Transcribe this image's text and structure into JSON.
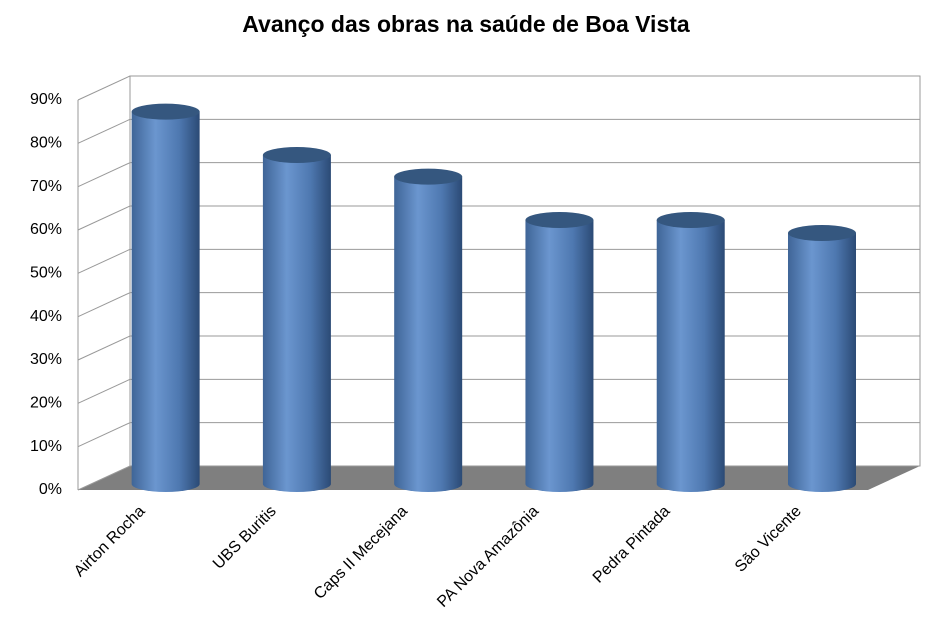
{
  "chart_data": {
    "type": "bar",
    "title": "Avanço das obras na saúde de Boa Vista",
    "categories": [
      "Airton Rocha",
      "UBS Buritis",
      "Caps II Mecejana",
      "PA Nova Amazônia",
      "Pedra Pintada",
      "São Vicente"
    ],
    "values": [
      85,
      75,
      70,
      60,
      60,
      57
    ],
    "color": "#5b86bf",
    "ylim": [
      0,
      90
    ],
    "yticks": [
      {
        "value": 0,
        "label": "0%"
      },
      {
        "value": 10,
        "label": "10%"
      },
      {
        "value": 20,
        "label": "20%"
      },
      {
        "value": 30,
        "label": "30%"
      },
      {
        "value": 40,
        "label": "40%"
      },
      {
        "value": 50,
        "label": "50%"
      },
      {
        "value": 60,
        "label": "60%"
      },
      {
        "value": 70,
        "label": "70%"
      },
      {
        "value": 80,
        "label": "80%"
      },
      {
        "value": 90,
        "label": "90%"
      }
    ],
    "grid": true
  }
}
